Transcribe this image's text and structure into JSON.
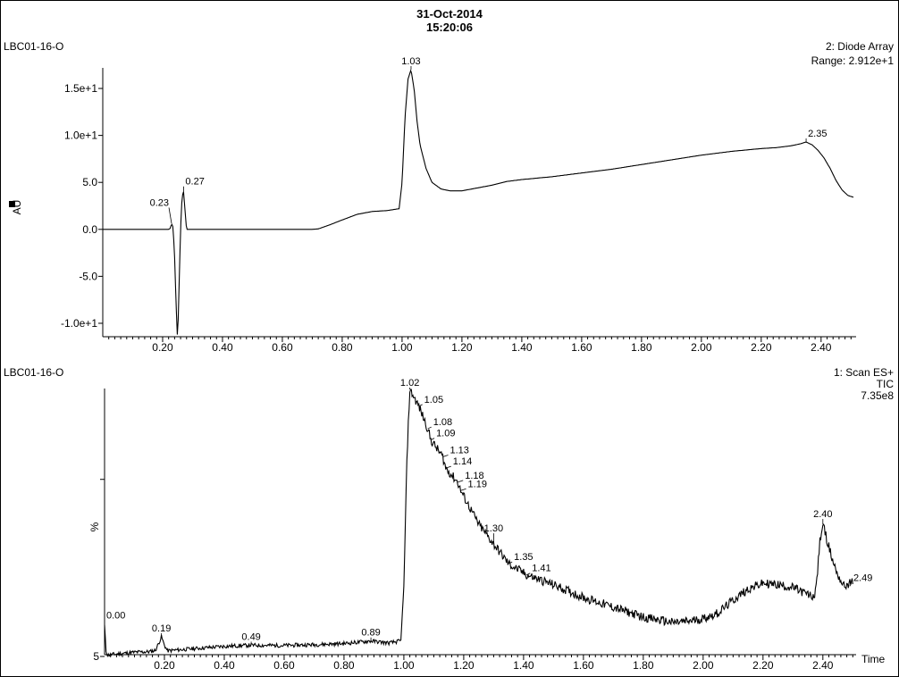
{
  "header": {
    "date": "31-Oct-2014",
    "time": "15:20:06"
  },
  "top_panel": {
    "sample": "LBC01-16-O",
    "detector": "2: Diode Array",
    "range": "Range: 2.912e+1",
    "y_axis_label": "AU"
  },
  "bottom_panel": {
    "sample": "LBC01-16-O",
    "detector": "1: Scan ES+",
    "trace": "TIC",
    "intensity": "7.35e8",
    "y_axis_label": "%",
    "y_tick_label": "5",
    "x_axis_label": "Time"
  },
  "chart_data": [
    {
      "type": "line",
      "ylabel": "AU",
      "xlim": [
        0.0,
        2.52
      ],
      "ylim": [
        -12.0,
        17.0
      ],
      "x_ticks": [
        0.2,
        0.4,
        0.6,
        0.8,
        1.0,
        1.2,
        1.4,
        1.6,
        1.8,
        2.0,
        2.2,
        2.4
      ],
      "x_tick_labels": [
        "0.20",
        "0.40",
        "0.60",
        "0.80",
        "1.00",
        "1.20",
        "1.40",
        "1.60",
        "1.80",
        "2.00",
        "2.20",
        "2.40"
      ],
      "y_ticks": [
        15,
        10,
        5,
        0,
        -5,
        -10
      ],
      "y_tick_labels": [
        "1.5e+1",
        "1.0e+1",
        "5.0",
        "0.0",
        "-5.0",
        "-1.0e+1"
      ],
      "series": [
        {
          "x": [
            0.0,
            0.2,
            0.22,
            0.225,
            0.23,
            0.235,
            0.24,
            0.245,
            0.25,
            0.255,
            0.26,
            0.265,
            0.27,
            0.275,
            0.28,
            0.29,
            0.3,
            0.4,
            0.5,
            0.6,
            0.7,
            0.72,
            0.76,
            0.8,
            0.85,
            0.9,
            0.95,
            0.99,
            1.0,
            1.01,
            1.02,
            1.03,
            1.04,
            1.05,
            1.06,
            1.08,
            1.1,
            1.13,
            1.16,
            1.2,
            1.25,
            1.3,
            1.35,
            1.4,
            1.5,
            1.6,
            1.7,
            1.8,
            1.9,
            2.0,
            2.1,
            2.2,
            2.25,
            2.3,
            2.33,
            2.35,
            2.37,
            2.39,
            2.41,
            2.43,
            2.45,
            2.47,
            2.49,
            2.51
          ],
          "y": [
            0.0,
            0.0,
            0.0,
            0.1,
            0.6,
            0.2,
            -3.0,
            -8.0,
            -12.0,
            -6.0,
            0.0,
            3.5,
            4.0,
            2.0,
            0.0,
            0.0,
            0.0,
            0.0,
            0.0,
            0.0,
            0.0,
            0.05,
            0.5,
            1.0,
            1.6,
            1.9,
            2.0,
            2.2,
            5.0,
            12.0,
            16.0,
            17.0,
            15.0,
            11.5,
            9.0,
            6.5,
            5.0,
            4.3,
            4.1,
            4.1,
            4.4,
            4.7,
            5.1,
            5.3,
            5.6,
            6.0,
            6.4,
            6.9,
            7.4,
            7.9,
            8.3,
            8.6,
            8.7,
            8.9,
            9.1,
            9.3,
            9.0,
            8.4,
            7.6,
            6.5,
            5.2,
            4.2,
            3.6,
            3.4
          ]
        }
      ],
      "peak_labels": [
        {
          "x": 0.23,
          "y": 0.6,
          "label": "0.23"
        },
        {
          "x": 0.27,
          "y": 4.0,
          "label": "0.27"
        },
        {
          "x": 1.03,
          "y": 17.0,
          "label": "1.03"
        },
        {
          "x": 2.35,
          "y": 9.3,
          "label": "2.35"
        }
      ]
    },
    {
      "type": "line",
      "ylabel": "%",
      "xlabel": "Time",
      "xlim": [
        0.0,
        2.52
      ],
      "ylim": [
        5,
        100
      ],
      "x_ticks": [
        0.2,
        0.4,
        0.6,
        0.8,
        1.0,
        1.2,
        1.4,
        1.6,
        1.8,
        2.0,
        2.2,
        2.4
      ],
      "x_tick_labels": [
        "0.20",
        "0.40",
        "0.60",
        "0.80",
        "1.00",
        "1.20",
        "1.40",
        "1.60",
        "1.80",
        "2.00",
        "2.20",
        "2.40"
      ],
      "y_ticks": [
        5
      ],
      "y_tick_labels": [
        "5"
      ],
      "series": [
        {
          "x": [
            0.0,
            0.005,
            0.01,
            0.05,
            0.1,
            0.15,
            0.17,
            0.18,
            0.19,
            0.2,
            0.21,
            0.23,
            0.3,
            0.4,
            0.49,
            0.6,
            0.7,
            0.8,
            0.89,
            0.95,
            0.99,
            1.0,
            1.01,
            1.02,
            1.05,
            1.08,
            1.09,
            1.13,
            1.14,
            1.18,
            1.19,
            1.25,
            1.3,
            1.35,
            1.41,
            1.5,
            1.6,
            1.7,
            1.8,
            1.9,
            1.95,
            2.0,
            2.05,
            2.1,
            2.15,
            2.2,
            2.25,
            2.3,
            2.35,
            2.37,
            2.38,
            2.39,
            2.4,
            2.41,
            2.42,
            2.43,
            2.45,
            2.47,
            2.49,
            2.5
          ],
          "y": [
            16.0,
            7.0,
            5.5,
            6.0,
            6.5,
            6.7,
            7.2,
            9.5,
            12.0,
            9.0,
            7.0,
            7.2,
            7.8,
            8.6,
            9.0,
            8.9,
            9.2,
            9.6,
            10.5,
            9.8,
            10.5,
            30.0,
            75.0,
            100.0,
            94.0,
            86.0,
            82.0,
            76.0,
            72.0,
            67.0,
            64.0,
            52.0,
            45.0,
            38.0,
            34.0,
            30.5,
            26.0,
            22.5,
            19.0,
            17.0,
            17.5,
            18.5,
            20.5,
            25.0,
            29.0,
            31.0,
            30.5,
            29.5,
            27.0,
            26.0,
            32.0,
            46.0,
            52.0,
            48.0,
            44.0,
            40.0,
            34.0,
            30.0,
            31.0,
            31.5
          ]
        }
      ],
      "peak_labels": [
        {
          "x": 0.0,
          "y": 16.0,
          "label": "0.00"
        },
        {
          "x": 0.19,
          "y": 12.0,
          "label": "0.19"
        },
        {
          "x": 0.49,
          "y": 9.0,
          "label": "0.49"
        },
        {
          "x": 0.89,
          "y": 10.5,
          "label": "0.89"
        },
        {
          "x": 1.02,
          "y": 100.0,
          "label": "1.02"
        },
        {
          "x": 1.05,
          "y": 94.0,
          "label": "1.05"
        },
        {
          "x": 1.08,
          "y": 86.0,
          "label": "1.08"
        },
        {
          "x": 1.09,
          "y": 82.0,
          "label": "1.09"
        },
        {
          "x": 1.13,
          "y": 76.0,
          "label": "1.13"
        },
        {
          "x": 1.14,
          "y": 72.0,
          "label": "1.14"
        },
        {
          "x": 1.18,
          "y": 67.0,
          "label": "1.18"
        },
        {
          "x": 1.19,
          "y": 64.0,
          "label": "1.19"
        },
        {
          "x": 1.3,
          "y": 45.0,
          "label": "1.30"
        },
        {
          "x": 1.35,
          "y": 38.0,
          "label": "1.35"
        },
        {
          "x": 1.41,
          "y": 34.0,
          "label": "1.41"
        },
        {
          "x": 2.4,
          "y": 52.0,
          "label": "2.40"
        },
        {
          "x": 2.49,
          "y": 30.0,
          "label": "2.49"
        }
      ]
    }
  ]
}
